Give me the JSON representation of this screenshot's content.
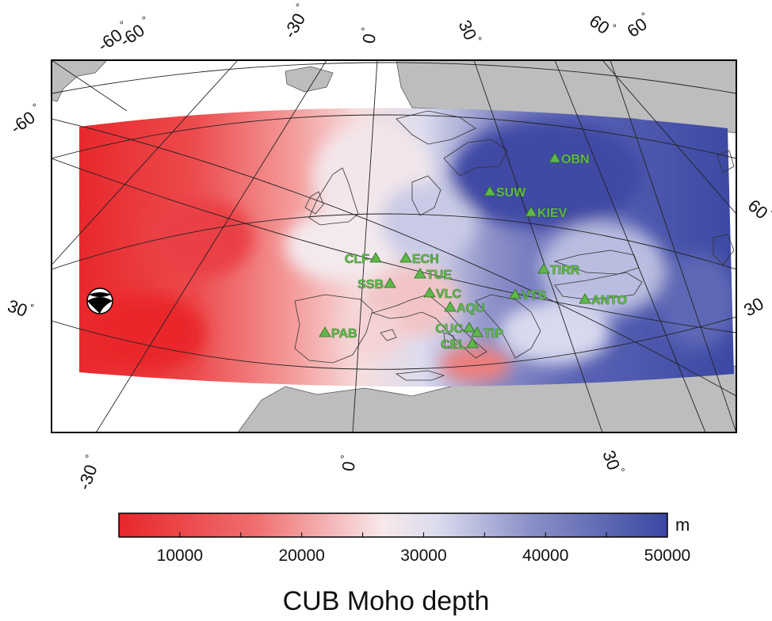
{
  "title": "CUB Moho depth",
  "colorbar": {
    "unit": "m",
    "min": 5000,
    "max": 50000,
    "ticks": [
      10000,
      20000,
      30000,
      40000,
      50000
    ],
    "tick_labels": [
      "10000",
      "20000",
      "30000",
      "40000",
      "50000"
    ],
    "colors": {
      "low": "#e8262b",
      "mid": "#f4f0f6",
      "high": "#3848a0"
    }
  },
  "graticule_labels": {
    "top": [
      "-60",
      "-60",
      "-30",
      "0",
      "30",
      "60",
      "60"
    ],
    "left": [
      "-60",
      "30"
    ],
    "right": [
      "60",
      "30"
    ],
    "bottom": [
      "-30",
      "0",
      "30"
    ]
  },
  "stations": [
    {
      "code": "OBN"
    },
    {
      "code": "SUW"
    },
    {
      "code": "KIEV"
    },
    {
      "code": "CLF"
    },
    {
      "code": "ECH"
    },
    {
      "code": "TUE"
    },
    {
      "code": "TIRR"
    },
    {
      "code": "SSB"
    },
    {
      "code": "VLC"
    },
    {
      "code": "VTS"
    },
    {
      "code": "ANTO"
    },
    {
      "code": "AQU"
    },
    {
      "code": "PAB"
    },
    {
      "code": "CUC"
    },
    {
      "code": "TIP"
    },
    {
      "code": "CEL"
    }
  ],
  "event_icon": "focal-mechanism-beachball-icon",
  "chart_data": {
    "type": "heatmap",
    "title": "CUB Moho depth",
    "colorbar_unit": "m",
    "colorbar_range": [
      5000,
      50000
    ],
    "colorbar_ticks": [
      10000,
      20000,
      30000,
      40000,
      50000
    ]
  }
}
